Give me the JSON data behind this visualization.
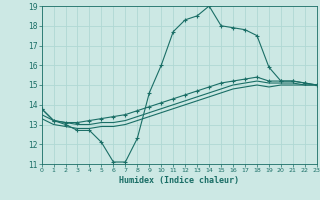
{
  "xlabel": "Humidex (Indice chaleur)",
  "bg_color": "#cce8e4",
  "grid_color": "#b0d8d4",
  "line_color": "#1a6e66",
  "xlim": [
    0,
    23
  ],
  "ylim": [
    11,
    19
  ],
  "xticks": [
    0,
    1,
    2,
    3,
    4,
    5,
    6,
    7,
    8,
    9,
    10,
    11,
    12,
    13,
    14,
    15,
    16,
    17,
    18,
    19,
    20,
    21,
    22,
    23
  ],
  "yticks": [
    11,
    12,
    13,
    14,
    15,
    16,
    17,
    18,
    19
  ],
  "curve1_x": [
    0,
    1,
    2,
    3,
    4,
    5,
    6,
    7,
    8,
    9,
    10,
    11,
    12,
    13,
    14,
    15,
    16,
    17,
    18,
    19,
    20,
    21,
    22,
    23
  ],
  "curve1_y": [
    13.8,
    13.2,
    13.0,
    12.7,
    12.7,
    12.1,
    11.1,
    11.1,
    12.3,
    14.6,
    16.0,
    17.7,
    18.3,
    18.5,
    19.0,
    18.0,
    17.9,
    17.8,
    17.5,
    15.9,
    15.2,
    15.2,
    15.1,
    15.0
  ],
  "curve2_x": [
    0,
    1,
    2,
    3,
    4,
    5,
    6,
    7,
    8,
    9,
    10,
    11,
    12,
    13,
    14,
    15,
    16,
    17,
    18,
    19,
    20,
    21,
    22,
    23
  ],
  "curve2_y": [
    13.8,
    13.2,
    13.1,
    13.1,
    13.2,
    13.3,
    13.4,
    13.5,
    13.7,
    13.9,
    14.1,
    14.3,
    14.5,
    14.7,
    14.9,
    15.1,
    15.2,
    15.3,
    15.4,
    15.2,
    15.2,
    15.2,
    15.1,
    15.0
  ],
  "curve3_x": [
    0,
    1,
    2,
    3,
    4,
    5,
    6,
    7,
    8,
    9,
    10,
    11,
    12,
    13,
    14,
    15,
    16,
    17,
    18,
    19,
    20,
    21,
    22,
    23
  ],
  "curve3_y": [
    13.5,
    13.2,
    13.1,
    13.0,
    13.0,
    13.1,
    13.1,
    13.2,
    13.4,
    13.6,
    13.8,
    14.0,
    14.2,
    14.4,
    14.6,
    14.8,
    15.0,
    15.1,
    15.2,
    15.1,
    15.1,
    15.1,
    15.0,
    15.0
  ],
  "curve4_x": [
    0,
    1,
    2,
    3,
    4,
    5,
    6,
    7,
    8,
    9,
    10,
    11,
    12,
    13,
    14,
    15,
    16,
    17,
    18,
    19,
    20,
    21,
    22,
    23
  ],
  "curve4_y": [
    13.3,
    13.0,
    12.9,
    12.8,
    12.8,
    12.9,
    12.9,
    13.0,
    13.2,
    13.4,
    13.6,
    13.8,
    14.0,
    14.2,
    14.4,
    14.6,
    14.8,
    14.9,
    15.0,
    14.9,
    15.0,
    15.0,
    15.0,
    15.0
  ]
}
